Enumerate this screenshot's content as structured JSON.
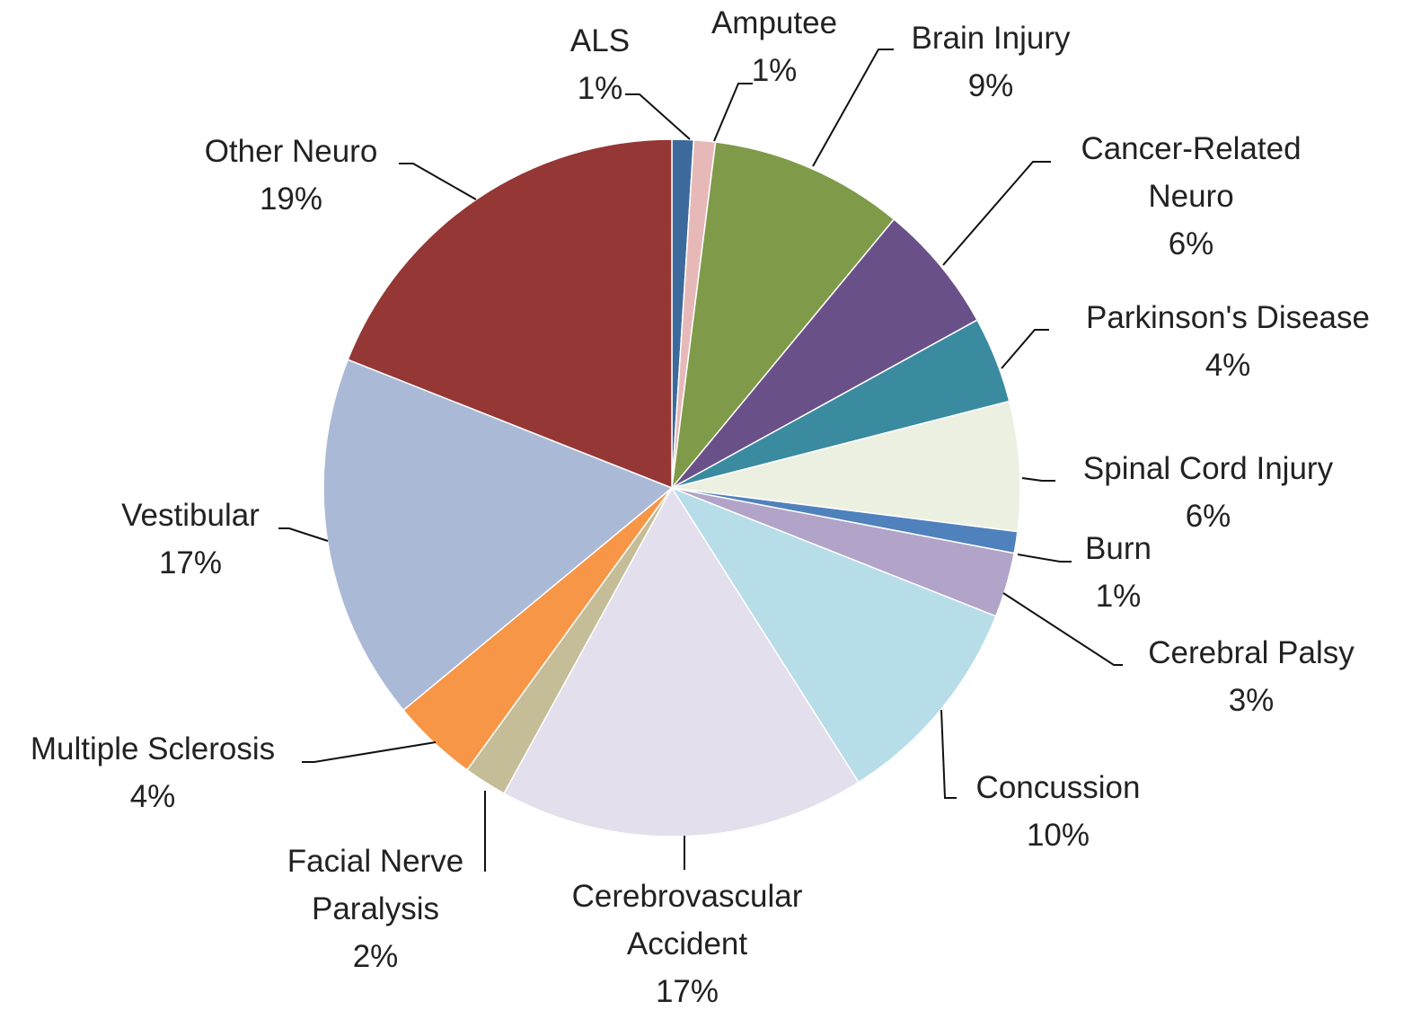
{
  "chart_data": {
    "type": "pie",
    "categories": [
      "ALS",
      "Amputee",
      "Brain Injury",
      "Cancer-Related Neuro",
      "Parkinson's Disease",
      "Spinal Cord Injury",
      "Burn",
      "Cerebral Palsy",
      "Concussion",
      "Cerebrovascular Accident",
      "Facial Nerve Paralysis",
      "Multiple Sclerosis",
      "Vestibular",
      "Other Neuro"
    ],
    "values": [
      1,
      1,
      9,
      6,
      4,
      6,
      1,
      3,
      10,
      17,
      2,
      4,
      17,
      19
    ],
    "value_labels": [
      "1%",
      "1%",
      "9%",
      "6%",
      "4%",
      "6%",
      "1%",
      "3%",
      "10%",
      "17%",
      "2%",
      "4%",
      "17%",
      "19%"
    ],
    "colors": [
      "#3d6a9c",
      "#e6b9b8",
      "#7f9a48",
      "#6a5088",
      "#3b8ba0",
      "#ebf0e0",
      "#4f81bd",
      "#b2a3c8",
      "#b7dde8",
      "#e4dfec",
      "#c4bd97",
      "#f79646",
      "#aab9d6",
      "#953735"
    ]
  }
}
